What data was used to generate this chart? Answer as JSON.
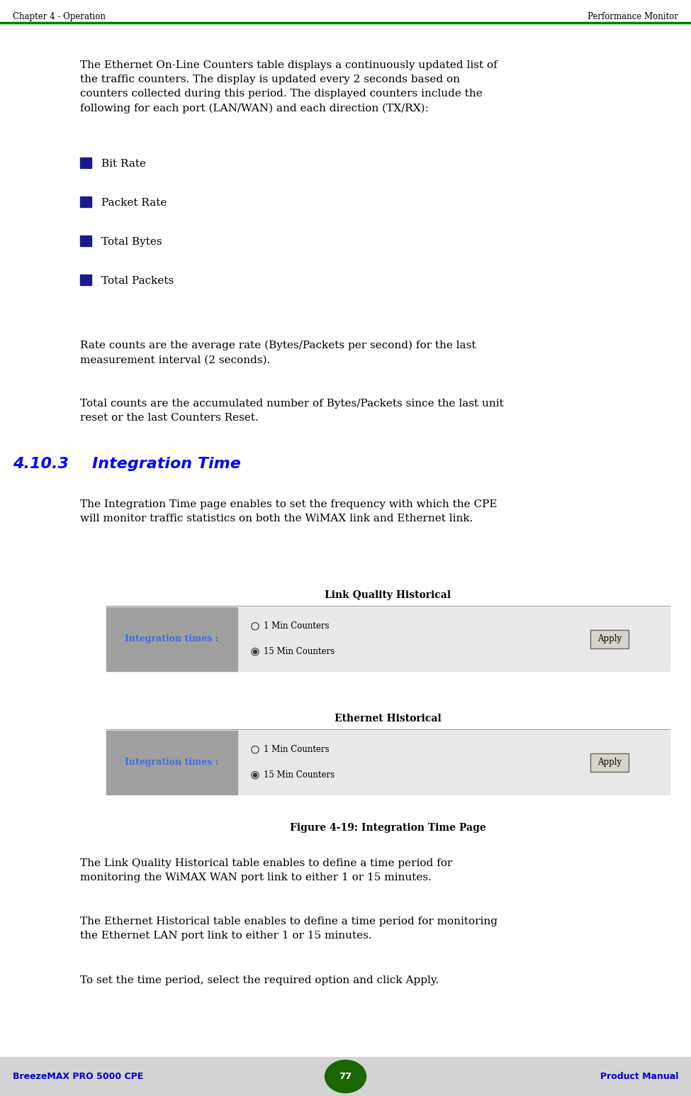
{
  "header_left": "Chapter 4 - Operation",
  "header_right": "Performance Monitor",
  "header_line_color": "#008000",
  "footer_left": "BreezeMAX PRO 5000 CPE",
  "footer_right": "Product Manual",
  "footer_page": "77",
  "footer_bg": "#d3d3d3",
  "footer_text_color": "#0000cc",
  "footer_page_bg": "#1a6600",
  "body_text_color": "#000000",
  "section_heading_color": "#0000ff",
  "para1": "The Ethernet On-Line Counters table displays a continuously updated list of the traffic counters. The display is updated every 2 seconds based on counters collected during this period. The displayed counters include the following for each port (LAN/WAN) and each direction (TX/RX):",
  "bullets": [
    "Bit Rate",
    "Packet Rate",
    "Total Bytes",
    "Total Packets"
  ],
  "bullet_color": "#1a1a8c",
  "para2": "Rate counts are the average rate (Bytes/Packets per second) for the last measurement interval (2 seconds).",
  "para3": "Total counts are the accumulated number of Bytes/Packets since the last unit reset or the last Counters Reset.",
  "section_num": "4.10.3",
  "section_title": "Integration Time",
  "section_body": "The Integration Time page enables to set the frequency with which the CPE will monitor traffic statistics on both the WiMAX link and Ethernet link.",
  "figure_title": "Figure 4-19: Integration Time Page",
  "lqh_title": "Link Quality Historical",
  "eth_title": "Ethernet Historical",
  "row_label": "Integration times :",
  "row_label_color": "#4169e1",
  "row_bg": "#a0a0a0",
  "table_bg": "#e8e8e8",
  "radio1": "1 Min Counters",
  "radio2": "15 Min Counters",
  "apply_text": "Apply",
  "post_para1": "The Link Quality Historical table enables to define a time period for monitoring the WiMAX WAN port link to either 1 or 15 minutes.",
  "post_para2": "The Ethernet Historical table enables to define a time period for monitoring the Ethernet LAN port link to either 1 or 15 minutes.",
  "post_para3": "To set the time period, select the required option and click Apply."
}
